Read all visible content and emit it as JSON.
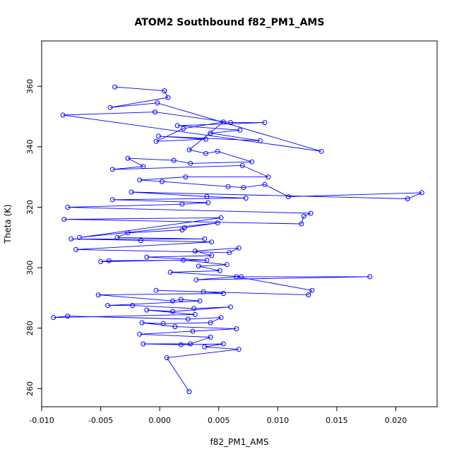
{
  "chart_data": {
    "type": "line",
    "title": "ATOM2 Southbound f82_PM1_AMS",
    "xlabel": "f82_PM1_AMS",
    "ylabel": "Theta (K)",
    "xlim": [
      -0.01,
      0.0235
    ],
    "ylim": [
      254,
      375
    ],
    "x_ticks": [
      -0.01,
      -0.005,
      0.0,
      0.005,
      0.01,
      0.015,
      0.02
    ],
    "x_tick_labels": [
      "-0.010",
      "-0.005",
      "0.000",
      "0.005",
      "0.010",
      "0.015",
      "0.020"
    ],
    "y_ticks": [
      260,
      280,
      300,
      320,
      340,
      360
    ],
    "y_tick_labels": [
      "260",
      "280",
      "300",
      "320",
      "340",
      "360"
    ],
    "grid": false,
    "series": [
      {
        "color": "#0000ff",
        "marker": "open-circle",
        "points": [
          [
            -0.0038,
            359.8
          ],
          [
            0.0004,
            358.5
          ],
          [
            0.0007,
            356.3
          ],
          [
            -0.0042,
            353.0
          ],
          [
            -0.0002,
            354.5
          ],
          [
            0.0137,
            338.5
          ],
          [
            -0.0082,
            350.5
          ],
          [
            -0.0004,
            351.5
          ],
          [
            0.006,
            348.0
          ],
          [
            0.0089,
            348.0
          ],
          [
            0.0015,
            347.0
          ],
          [
            0.0068,
            345.5
          ],
          [
            0.0043,
            344.5
          ],
          [
            0.0085,
            342.0
          ],
          [
            -0.0001,
            343.5
          ],
          [
            0.0039,
            342.5
          ],
          [
            -0.0003,
            341.8
          ],
          [
            0.002,
            346.0
          ],
          [
            0.0054,
            348.2
          ],
          [
            0.0025,
            339.0
          ],
          [
            0.0039,
            337.8
          ],
          [
            0.0049,
            338.5
          ],
          [
            0.0078,
            335.0
          ],
          [
            0.0026,
            334.5
          ],
          [
            0.0012,
            335.5
          ],
          [
            -0.0027,
            336.2
          ],
          [
            -0.0014,
            333.5
          ],
          [
            -0.004,
            332.5
          ],
          [
            0.007,
            333.8
          ],
          [
            0.0092,
            330.0
          ],
          [
            0.0022,
            330.0
          ],
          [
            -0.0017,
            329.0
          ],
          [
            0.0002,
            328.5
          ],
          [
            0.0058,
            326.8
          ],
          [
            0.0071,
            326.5
          ],
          [
            0.0089,
            327.5
          ],
          [
            0.0109,
            323.5
          ],
          [
            0.0222,
            324.8
          ],
          [
            0.021,
            322.8
          ],
          [
            -0.0024,
            325.0
          ],
          [
            0.004,
            323.5
          ],
          [
            0.0073,
            323.0
          ],
          [
            -0.004,
            322.5
          ],
          [
            0.0041,
            321.5
          ],
          [
            0.0019,
            321.0
          ],
          [
            -0.0078,
            320.0
          ],
          [
            0.0128,
            318.0
          ],
          [
            0.0122,
            317.0
          ],
          [
            0.012,
            314.5
          ],
          [
            -0.0081,
            316.0
          ],
          [
            0.0052,
            316.5
          ],
          [
            -0.0068,
            310.0
          ],
          [
            0.0049,
            314.8
          ],
          [
            0.0021,
            313.2
          ],
          [
            0.0019,
            312.5
          ],
          [
            -0.0027,
            311.5
          ],
          [
            -0.0036,
            310.0
          ],
          [
            0.0038,
            309.5
          ],
          [
            -0.0075,
            309.5
          ],
          [
            -0.0016,
            309.0
          ],
          [
            0.0044,
            308.5
          ],
          [
            -0.0071,
            306.0
          ],
          [
            0.0059,
            305.0
          ],
          [
            0.0067,
            306.5
          ],
          [
            0.003,
            305.5
          ],
          [
            0.0044,
            304.0
          ],
          [
            -0.0011,
            303.5
          ],
          [
            0.004,
            302.5
          ],
          [
            -0.0043,
            302.3
          ],
          [
            -0.005,
            302.0
          ],
          [
            0.002,
            302.5
          ],
          [
            0.0057,
            301.0
          ],
          [
            0.0033,
            300.5
          ],
          [
            0.0051,
            299.0
          ],
          [
            0.0009,
            298.5
          ],
          [
            0.0069,
            297.0
          ],
          [
            0.0178,
            297.0
          ],
          [
            0.0031,
            296.0
          ],
          [
            0.0065,
            297.0
          ],
          [
            0.0129,
            292.5
          ],
          [
            0.0126,
            291.0
          ],
          [
            -0.0003,
            292.5
          ],
          [
            0.0037,
            292.0
          ],
          [
            0.0054,
            291.5
          ],
          [
            -0.0052,
            291.0
          ],
          [
            0.0011,
            289.0
          ],
          [
            0.0018,
            289.5
          ],
          [
            0.0034,
            289.0
          ],
          [
            -0.0044,
            287.5
          ],
          [
            -0.0023,
            287.5
          ],
          [
            0.0029,
            286.5
          ],
          [
            0.006,
            287.0
          ],
          [
            0.0011,
            285.5
          ],
          [
            -0.0011,
            286.0
          ],
          [
            0.003,
            284.5
          ],
          [
            -0.009,
            283.5
          ],
          [
            -0.0078,
            284.0
          ],
          [
            0.0024,
            283.0
          ],
          [
            0.0052,
            283.5
          ],
          [
            0.0043,
            281.8
          ],
          [
            0.0003,
            281.5
          ],
          [
            -0.0015,
            281.8
          ],
          [
            0.0013,
            280.5
          ],
          [
            0.0065,
            279.8
          ],
          [
            0.0028,
            279.0
          ],
          [
            -0.0017,
            278.0
          ],
          [
            0.0043,
            277.0
          ],
          [
            0.0026,
            274.8
          ],
          [
            -0.0014,
            274.8
          ],
          [
            0.0018,
            274.5
          ],
          [
            0.0054,
            274.8
          ],
          [
            0.0038,
            273.8
          ],
          [
            0.0067,
            273.0
          ],
          [
            0.0006,
            270.2
          ],
          [
            0.0025,
            259.0
          ]
        ]
      }
    ]
  }
}
